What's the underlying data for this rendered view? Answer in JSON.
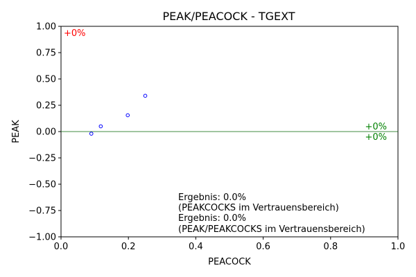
{
  "chart_data": {
    "type": "scatter",
    "title": "PEAK/PEACOCK - TGEXT",
    "xlabel": "PEACOCK",
    "ylabel": "PEAK",
    "xlim": [
      0.0,
      1.0
    ],
    "ylim": [
      -1.0,
      1.0
    ],
    "xticks": [
      "0.0",
      "0.2",
      "0.4",
      "0.6",
      "0.8",
      "1.0"
    ],
    "yticks": [
      "−1.00",
      "−0.75",
      "−0.50",
      "−0.25",
      "0.00",
      "0.25",
      "0.50",
      "0.75",
      "1.00"
    ],
    "points": [
      {
        "x": 0.09,
        "y": -0.02
      },
      {
        "x": 0.118,
        "y": 0.05
      },
      {
        "x": 0.198,
        "y": 0.155
      },
      {
        "x": 0.25,
        "y": 0.34
      }
    ],
    "reference_line": {
      "y": 0.0,
      "color": "#006400"
    },
    "point_color": "#0000ff",
    "annotations": {
      "top_left": {
        "text": "+0%",
        "color": "#ff0000"
      },
      "right_upper": {
        "text": "+0%",
        "color": "#008000"
      },
      "right_lower": {
        "text": "+0%",
        "color": "#008000"
      }
    },
    "result_text": [
      "Ergebnis: 0.0%",
      "(PEAKCOCKS im Vertrauensbereich)",
      "Ergebnis: 0.0%",
      "(PEAK/PEAKCOCKS im Vertrauensbereich)"
    ],
    "grid": false,
    "legend": "none"
  }
}
